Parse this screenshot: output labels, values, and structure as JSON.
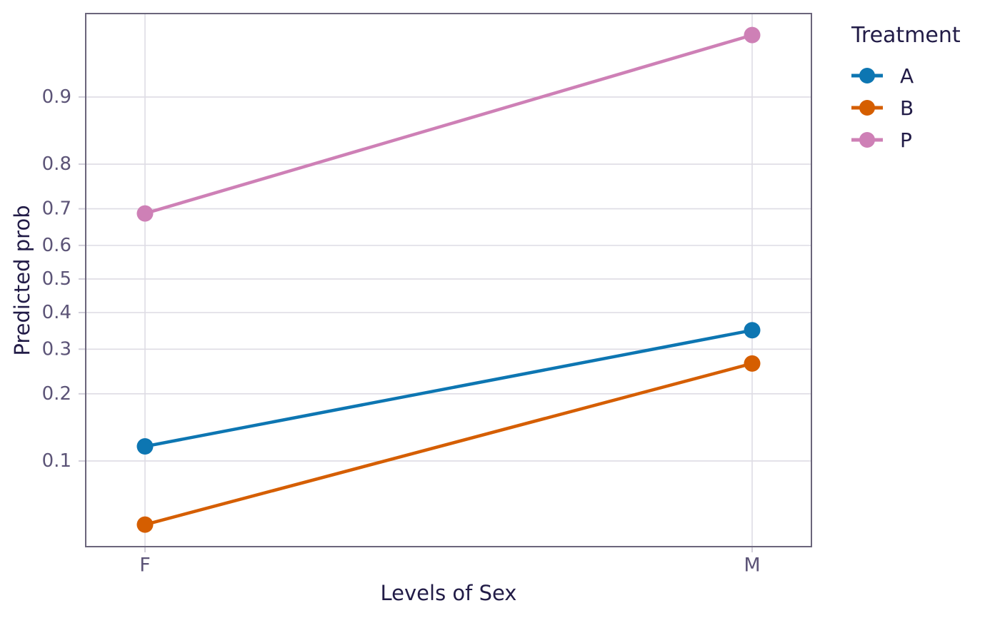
{
  "figure": {
    "background": "#ffffff",
    "xlabel": "Levels of Sex",
    "ylabel": "Predicted prob",
    "legend_title": "Treatment"
  },
  "styles": {
    "panel_border": "#6b657b",
    "gridline": "#dedce4",
    "tick_mark": "#d2cfda",
    "tick_label_color": "#5c5477",
    "title_color": "#221c47"
  },
  "chart_data": {
    "type": "line",
    "title": "",
    "xlabel": "Levels of Sex",
    "ylabel": "Predicted prob",
    "x_categories": [
      "F",
      "M"
    ],
    "y_scale": "logit",
    "y_ticks": [
      0.1,
      0.2,
      0.3,
      0.4,
      0.5,
      0.6,
      0.7,
      0.8,
      0.9
    ],
    "y_tick_labels": [
      "0.1",
      "0.2",
      "0.3",
      "0.4",
      "0.5",
      "0.6",
      "0.7",
      "0.8",
      "0.9"
    ],
    "y_domain": [
      0.038,
      0.961
    ],
    "grid": true,
    "legend_title": "Treatment",
    "legend_position": "right",
    "series": [
      {
        "name": "A",
        "color": "#0d76b2",
        "values": [
          0.117,
          0.35
        ]
      },
      {
        "name": "B",
        "color": "#d55e00",
        "values": [
          0.049,
          0.265
        ]
      },
      {
        "name": "P",
        "color": "#ce80b6",
        "values": [
          0.688,
          0.95
        ]
      }
    ]
  }
}
